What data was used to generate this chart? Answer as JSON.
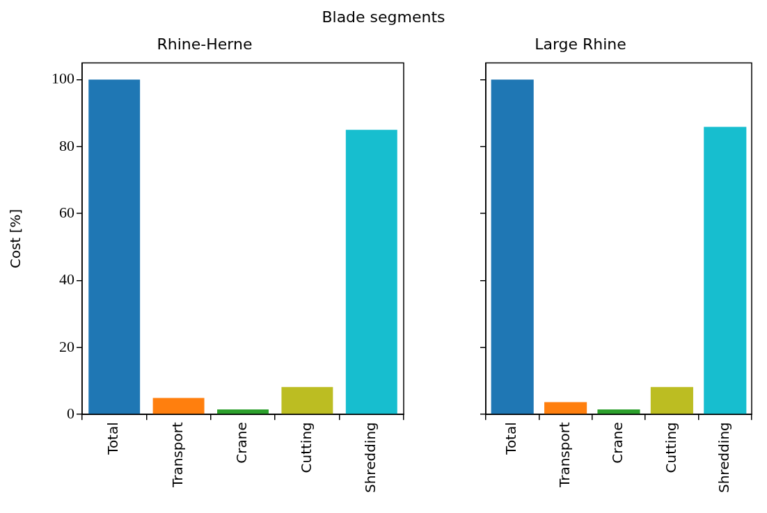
{
  "chart_data": [
    {
      "type": "bar",
      "title": "Rhine-Herne",
      "ylabel": "Cost [%]",
      "annotations": [
        "Blade segments"
      ],
      "categories": [
        "Total",
        "Transport",
        "Crane",
        "Cutting",
        "Shredding"
      ],
      "colors": [
        "#1f77b4",
        "#ff7f0e",
        "#2ca02c",
        "#bcbd22",
        "#17becf"
      ],
      "values": [
        100,
        4.9,
        1.5,
        8.2,
        85.0
      ],
      "ylim": [
        0,
        105
      ],
      "yticks": [
        0,
        20,
        40,
        60,
        80,
        100
      ],
      "grid": false
    },
    {
      "type": "bar",
      "title": "Large Rhine",
      "categories": [
        "Total",
        "Transport",
        "Crane",
        "Cutting",
        "Shredding"
      ],
      "colors": [
        "#1f77b4",
        "#ff7f0e",
        "#2ca02c",
        "#bcbd22",
        "#17becf"
      ],
      "values": [
        100,
        3.7,
        1.5,
        8.2,
        85.9
      ],
      "ylim": [
        0,
        105
      ],
      "yticks": [
        0,
        20,
        40,
        60,
        80,
        100
      ],
      "grid": false,
      "tick_labels": "x"
    }
  ]
}
